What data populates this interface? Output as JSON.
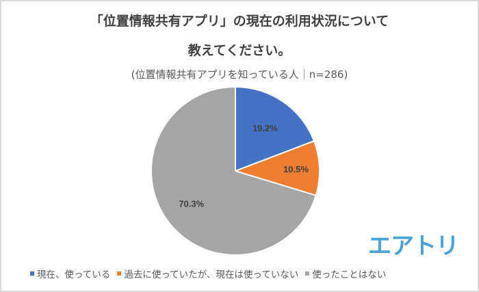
{
  "chart_data": {
    "type": "pie",
    "title_line1": "「位置情報共有アプリ」の現在の利用状況について",
    "title_line2": "教えてください。",
    "subtitle": "(位置情報共有アプリを知っている人｜n=286)",
    "slices": [
      {
        "label": "現在、使っている",
        "value": 19.2,
        "display": "19.2%",
        "color": "#4472c4"
      },
      {
        "label": "過去に使っていたが、現在は使っていない",
        "value": 10.5,
        "display": "10.5%",
        "color": "#ed7d31"
      },
      {
        "label": "使ったことはない",
        "value": 70.3,
        "display": "70.3%",
        "color": "#a5a5a5"
      }
    ],
    "legend_position": "bottom"
  },
  "logo_text": "エアトリ"
}
